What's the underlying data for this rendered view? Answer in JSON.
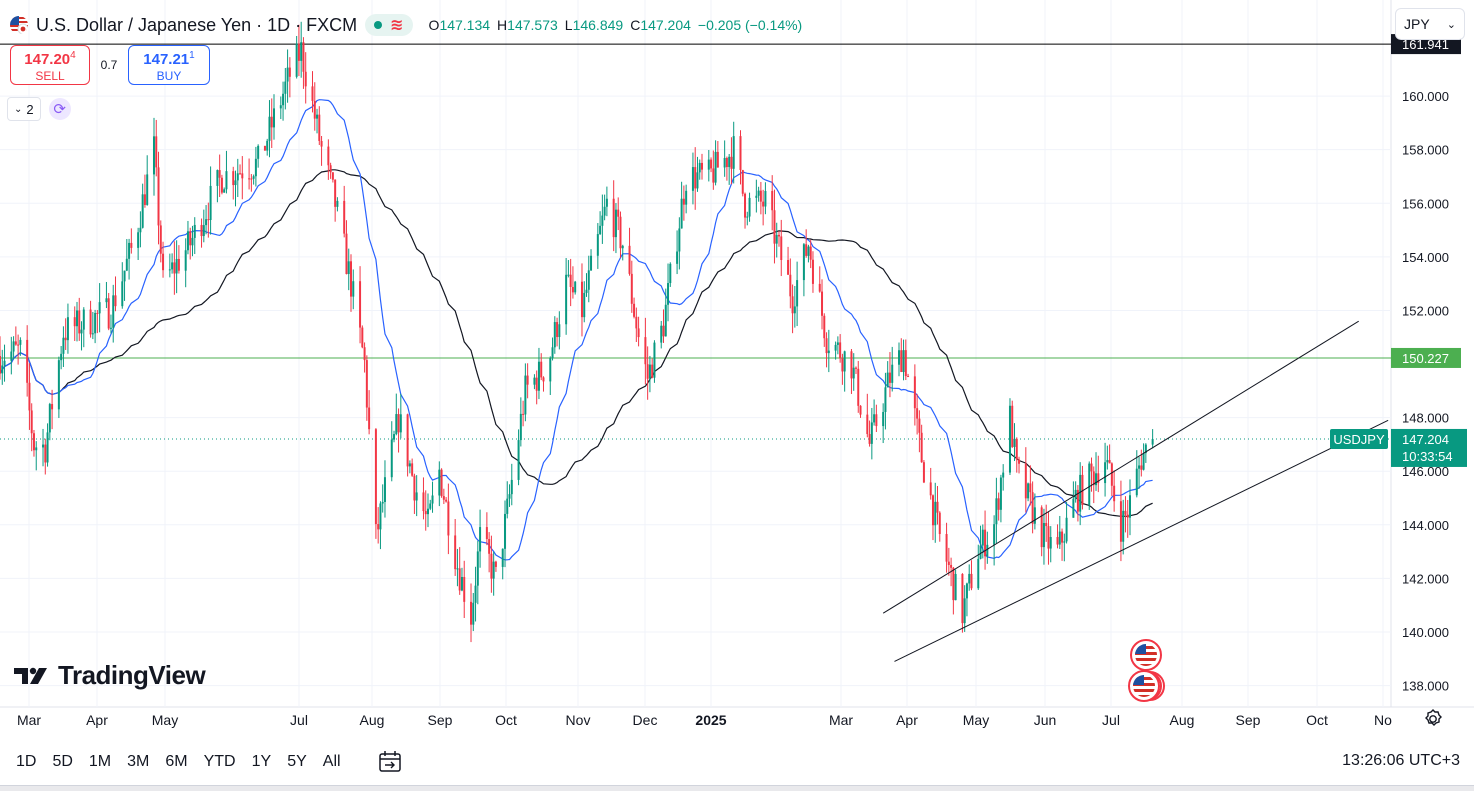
{
  "header": {
    "title": "U.S. Dollar / Japanese Yen · 1D · FXCM",
    "ohlc": [
      {
        "k": "O",
        "v": "147.134"
      },
      {
        "k": "H",
        "v": "147.573"
      },
      {
        "k": "L",
        "v": "146.849"
      },
      {
        "k": "C",
        "v": "147.204"
      },
      {
        "k": "",
        "v": "−0.205 (−0.14%)"
      }
    ]
  },
  "trade": {
    "sell_price": "147.20",
    "sell_price_sup": "4",
    "sell_label": "SELL",
    "spread": "0.7",
    "buy_price": "147.21",
    "buy_price_sup": "1",
    "buy_label": "BUY"
  },
  "indicators": {
    "count": "2"
  },
  "currency_select": "JPY",
  "brand": "TradingView",
  "timeframes": [
    "1D",
    "5D",
    "1M",
    "3M",
    "6M",
    "YTD",
    "1Y",
    "5Y",
    "All"
  ],
  "clock": "13:26:06 UTC+3",
  "colors": {
    "up": "#089981",
    "down": "#f23645",
    "ma_fast": "#2962ff",
    "ma_slow": "#131722",
    "hline_black": "#000000",
    "hline_green": "#4caf50",
    "accent": "#2962ff"
  },
  "chart_data": {
    "type": "candlestick",
    "symbol": "USDJPY",
    "last_price": "147.204",
    "countdown": "10:33:54",
    "y_ticks": [
      "160.000",
      "158.000",
      "156.000",
      "154.000",
      "152.000",
      "148.000",
      "146.000",
      "144.000",
      "142.000",
      "140.000",
      "138.000"
    ],
    "x_labels": [
      "Mar",
      "Apr",
      "May",
      "Jul",
      "Aug",
      "Sep",
      "Oct",
      "Nov",
      "Dec",
      "2025",
      "Mar",
      "Apr",
      "May",
      "Jun",
      "Jul",
      "Aug",
      "Sep",
      "Oct",
      "No"
    ],
    "ylim": [
      137.2,
      163.4
    ],
    "horizontal_lines": [
      {
        "price": 161.941,
        "label": "161.941",
        "color": "#000000"
      },
      {
        "price": 150.227,
        "label": "150.227",
        "color": "#4caf50"
      }
    ],
    "trendlines": [
      {
        "from": [
          "2025-03-17",
          140.7
        ],
        "to": [
          "2025-10-13",
          151.6
        ]
      },
      {
        "from": [
          "2025-03-22",
          138.9
        ],
        "to": [
          "2025-10-26",
          147.9
        ]
      }
    ],
    "price_anchors": [
      [
        "2024-02-21",
        150.3
      ],
      [
        "2024-03-01",
        150.5
      ],
      [
        "2024-03-07",
        147.0
      ],
      [
        "2024-03-12",
        146.9
      ],
      [
        "2024-03-20",
        151.2
      ],
      [
        "2024-04-10",
        152.0
      ],
      [
        "2024-04-20",
        154.5
      ],
      [
        "2024-04-29",
        158.0
      ],
      [
        "2024-05-03",
        153.0
      ],
      [
        "2024-05-15",
        154.5
      ],
      [
        "2024-05-29",
        157.0
      ],
      [
        "2024-06-14",
        157.5
      ],
      [
        "2024-06-28",
        160.8
      ],
      [
        "2024-07-03",
        161.7
      ],
      [
        "2024-07-12",
        158.0
      ],
      [
        "2024-07-18",
        156.0
      ],
      [
        "2024-07-25",
        153.0
      ],
      [
        "2024-07-31",
        150.0
      ],
      [
        "2024-08-05",
        143.5
      ],
      [
        "2024-08-15",
        148.0
      ],
      [
        "2024-08-22",
        145.5
      ],
      [
        "2024-08-28",
        144.0
      ],
      [
        "2024-09-02",
        146.0
      ],
      [
        "2024-09-10",
        142.5
      ],
      [
        "2024-09-16",
        140.6
      ],
      [
        "2024-09-20",
        143.5
      ],
      [
        "2024-09-27",
        142.0
      ],
      [
        "2024-10-02",
        144.5
      ],
      [
        "2024-10-10",
        149.0
      ],
      [
        "2024-10-20",
        150.0
      ],
      [
        "2024-10-28",
        153.0
      ],
      [
        "2024-11-04",
        152.0
      ],
      [
        "2024-11-15",
        156.0
      ],
      [
        "2024-11-22",
        154.5
      ],
      [
        "2024-11-30",
        150.5
      ],
      [
        "2024-12-03",
        149.5
      ],
      [
        "2024-12-10",
        151.5
      ],
      [
        "2024-12-20",
        157.0
      ],
      [
        "2024-12-30",
        157.0
      ],
      [
        "2025-01-10",
        158.0
      ],
      [
        "2025-01-15",
        156.0
      ],
      [
        "2025-01-24",
        156.0
      ],
      [
        "2025-02-05",
        152.5
      ],
      [
        "2025-02-12",
        154.5
      ],
      [
        "2025-02-20",
        151.0
      ],
      [
        "2025-03-03",
        150.0
      ],
      [
        "2025-03-11",
        147.0
      ],
      [
        "2025-03-20",
        149.5
      ],
      [
        "2025-03-26",
        150.5
      ],
      [
        "2025-04-03",
        146.5
      ],
      [
        "2025-04-11",
        143.5
      ],
      [
        "2025-04-21",
        140.7
      ],
      [
        "2025-04-28",
        143.0
      ],
      [
        "2025-05-05",
        144.0
      ],
      [
        "2025-05-12",
        148.0
      ],
      [
        "2025-05-15",
        146.0
      ],
      [
        "2025-05-27",
        143.5
      ],
      [
        "2025-06-02",
        143.0
      ],
      [
        "2025-06-10",
        145.0
      ],
      [
        "2025-06-23",
        146.5
      ],
      [
        "2025-06-30",
        144.0
      ],
      [
        "2025-07-03",
        144.5
      ],
      [
        "2025-07-09",
        146.5
      ],
      [
        "2025-07-14",
        147.2
      ]
    ]
  }
}
